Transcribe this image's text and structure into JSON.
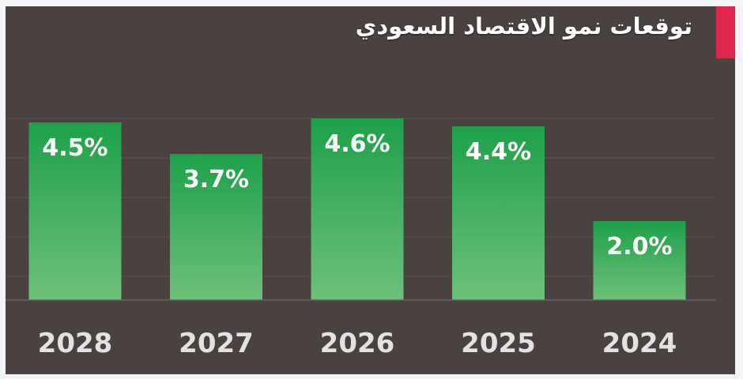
{
  "header": {
    "title": "توقعات نمو الاقتصاد السعودي"
  },
  "colors": {
    "background": "#4a4240",
    "bar_top": "#1ea04a",
    "bar_bottom": "#6ec07a",
    "accent": "#e0264e",
    "text": "#ffffff",
    "tick_text": "#e4e2e1",
    "gridline": "#5a524f"
  },
  "chart_data": {
    "type": "bar",
    "title": "توقعات نمو الاقتصاد السعودي",
    "categories": [
      "2028",
      "2027",
      "2026",
      "2025",
      "2024"
    ],
    "values": [
      4.5,
      3.7,
      4.6,
      4.4,
      2.0
    ],
    "data_labels": [
      "4.5%",
      "3.7%",
      "4.6%",
      "4.4%",
      "2.0%"
    ],
    "ylim": [
      0,
      5
    ],
    "unit": "%",
    "grid": true,
    "legend": "none"
  }
}
